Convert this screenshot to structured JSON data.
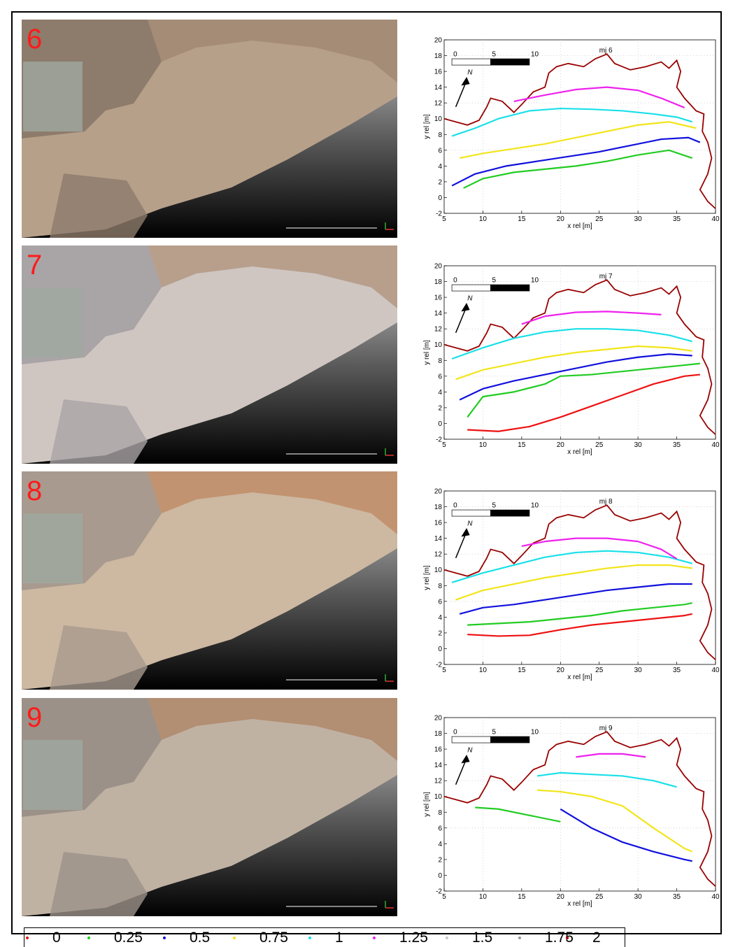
{
  "panels": [
    {
      "number": "6",
      "plot_title": "mj 6"
    },
    {
      "number": "7",
      "plot_title": "mj 7"
    },
    {
      "number": "8",
      "plot_title": "mj 8"
    },
    {
      "number": "9",
      "plot_title": "mj 9"
    }
  ],
  "axes": {
    "xlabel": "x rel [m]",
    "ylabel": "y rel [m]",
    "x_ticks": [
      "5",
      "10",
      "15",
      "20",
      "25",
      "30",
      "35",
      "40"
    ],
    "y_ticks": [
      "-2",
      "0",
      "2",
      "4",
      "6",
      "8",
      "10",
      "12",
      "14",
      "16",
      "18",
      "20"
    ],
    "scale_bar_labels": [
      "0",
      "5",
      "10"
    ],
    "north_label": "N"
  },
  "chart_data": {
    "type": "line",
    "xlim": [
      5,
      40
    ],
    "ylim": [
      -2,
      20
    ],
    "xlabel": "x rel [m]",
    "ylabel": "y rel [m]",
    "grid": true,
    "legend_placement": "bottom",
    "legend": [
      {
        "label": "0",
        "color": "#ee1111"
      },
      {
        "label": "0.25",
        "color": "#22cc22"
      },
      {
        "label": "0.5",
        "color": "#1111dd"
      },
      {
        "label": "0.75",
        "color": "#f2e51a"
      },
      {
        "label": "1",
        "color": "#19e0e8"
      },
      {
        "label": "1.25",
        "color": "#ee22ee"
      },
      {
        "label": "1.5",
        "color": "#c8c8c8"
      },
      {
        "label": "1.75",
        "color": "#999999"
      },
      {
        "label": "2",
        "color": "#990000"
      }
    ],
    "panels": [
      {
        "title": "mj 6",
        "series": [
          {
            "name": "0.25",
            "color": "#22cc22",
            "x": [
              7.5,
              10,
              14,
              18,
              22,
              26,
              30,
              34,
              37
            ],
            "y": [
              1.2,
              2.4,
              3.2,
              3.6,
              4.0,
              4.6,
              5.4,
              6.0,
              5.0
            ]
          },
          {
            "name": "0.5",
            "color": "#1111dd",
            "x": [
              6,
              9,
              13,
              17,
              21,
              25,
              29,
              33,
              36.5,
              38
            ],
            "y": [
              1.5,
              3.0,
              4.0,
              4.6,
              5.2,
              5.8,
              6.6,
              7.4,
              7.6,
              7.0
            ]
          },
          {
            "name": "0.75",
            "color": "#f2e51a",
            "x": [
              7,
              10,
              14,
              18,
              22,
              26,
              30,
              34,
              37.5
            ],
            "y": [
              5.0,
              5.6,
              6.2,
              6.8,
              7.6,
              8.4,
              9.2,
              9.6,
              8.8
            ]
          },
          {
            "name": "1",
            "color": "#19e0e8",
            "x": [
              6,
              9,
              12,
              16,
              20,
              24,
              28,
              32,
              35,
              37
            ],
            "y": [
              7.8,
              8.8,
              10.0,
              11.0,
              11.3,
              11.2,
              11.0,
              10.6,
              10.2,
              9.6
            ]
          },
          {
            "name": "1.25",
            "color": "#ee22ee",
            "x": [
              14,
              18,
              22,
              26,
              30,
              33,
              36
            ],
            "y": [
              12.2,
              13.0,
              13.7,
              14.0,
              13.6,
              12.6,
              11.4
            ]
          }
        ]
      },
      {
        "title": "mj 7",
        "series": [
          {
            "name": "0",
            "color": "#ee1111",
            "x": [
              8,
              12,
              16,
              20,
              24,
              28,
              32,
              36,
              38
            ],
            "y": [
              -0.8,
              -1.0,
              -0.4,
              0.8,
              2.2,
              3.6,
              5.0,
              6.0,
              6.2
            ]
          },
          {
            "name": "0.25",
            "color": "#22cc22",
            "x": [
              8,
              10,
              14,
              18,
              20,
              24,
              28,
              32,
              36,
              38
            ],
            "y": [
              0.8,
              3.4,
              4.0,
              5.0,
              6.0,
              6.2,
              6.6,
              7.0,
              7.4,
              7.6
            ]
          },
          {
            "name": "0.5",
            "color": "#1111dd",
            "x": [
              7,
              10,
              14,
              18,
              22,
              26,
              30,
              34,
              37
            ],
            "y": [
              3.0,
              4.4,
              5.4,
              6.2,
              7.0,
              7.8,
              8.4,
              8.8,
              8.6
            ]
          },
          {
            "name": "0.75",
            "color": "#f2e51a",
            "x": [
              6.5,
              10,
              14,
              18,
              22,
              26,
              30,
              34,
              37
            ],
            "y": [
              5.6,
              6.8,
              7.6,
              8.4,
              9.0,
              9.4,
              9.8,
              9.6,
              9.2
            ]
          },
          {
            "name": "1",
            "color": "#19e0e8",
            "x": [
              6,
              10,
              14,
              18,
              22,
              26,
              30,
              34,
              37
            ],
            "y": [
              8.2,
              9.6,
              10.8,
              11.6,
              12.0,
              12.0,
              11.8,
              11.2,
              10.4
            ]
          },
          {
            "name": "1.25",
            "color": "#ee22ee",
            "x": [
              15,
              18,
              22,
              26,
              30,
              33
            ],
            "y": [
              12.6,
              13.6,
              14.1,
              14.2,
              14.0,
              13.8
            ]
          }
        ]
      },
      {
        "title": "mj 8",
        "series": [
          {
            "name": "0",
            "color": "#ee1111",
            "x": [
              8,
              12,
              16,
              20,
              24,
              28,
              32,
              36,
              37
            ],
            "y": [
              1.8,
              1.6,
              1.7,
              2.4,
              3.0,
              3.4,
              3.8,
              4.2,
              4.4
            ]
          },
          {
            "name": "0.25",
            "color": "#22cc22",
            "x": [
              8,
              12,
              16,
              20,
              24,
              28,
              32,
              36,
              37
            ],
            "y": [
              3.0,
              3.2,
              3.4,
              3.8,
              4.2,
              4.8,
              5.2,
              5.6,
              5.8
            ]
          },
          {
            "name": "0.5",
            "color": "#1111dd",
            "x": [
              7,
              10,
              14,
              18,
              22,
              26,
              30,
              34,
              37
            ],
            "y": [
              4.4,
              5.2,
              5.6,
              6.2,
              6.8,
              7.4,
              7.8,
              8.2,
              8.2
            ]
          },
          {
            "name": "0.75",
            "color": "#f2e51a",
            "x": [
              6.5,
              10,
              14,
              18,
              22,
              26,
              30,
              34,
              37
            ],
            "y": [
              6.2,
              7.4,
              8.2,
              9.0,
              9.6,
              10.2,
              10.6,
              10.6,
              10.2
            ]
          },
          {
            "name": "1",
            "color": "#19e0e8",
            "x": [
              6,
              10,
              14,
              18,
              22,
              26,
              30,
              34,
              37
            ],
            "y": [
              8.4,
              9.6,
              10.6,
              11.6,
              12.2,
              12.4,
              12.2,
              11.6,
              10.8
            ]
          },
          {
            "name": "1.25",
            "color": "#ee22ee",
            "x": [
              15,
              18,
              22,
              26,
              30,
              33,
              35
            ],
            "y": [
              13.0,
              13.6,
              14.0,
              14.0,
              13.6,
              12.6,
              11.4
            ]
          }
        ]
      },
      {
        "title": "mj 9",
        "series": [
          {
            "name": "0.25",
            "color": "#22cc22",
            "x": [
              9,
              12,
              16,
              20
            ],
            "y": [
              8.6,
              8.4,
              7.6,
              6.8
            ]
          },
          {
            "name": "0.5",
            "color": "#1111dd",
            "x": [
              20,
              24,
              28,
              32,
              36,
              37
            ],
            "y": [
              8.4,
              6.0,
              4.2,
              3.0,
              2.0,
              1.8
            ]
          },
          {
            "name": "0.75",
            "color": "#f2e51a",
            "x": [
              17,
              20,
              24,
              28,
              32,
              36,
              37
            ],
            "y": [
              10.8,
              10.6,
              10.0,
              8.8,
              6.0,
              3.4,
              3.0
            ]
          },
          {
            "name": "1",
            "color": "#19e0e8",
            "x": [
              17,
              20,
              24,
              28,
              32,
              35
            ],
            "y": [
              12.6,
              13.0,
              12.8,
              12.6,
              12.0,
              11.2
            ]
          },
          {
            "name": "1.25",
            "color": "#ee22ee",
            "x": [
              22,
              25,
              28,
              31
            ],
            "y": [
              15.0,
              15.4,
              15.4,
              15.0
            ]
          }
        ]
      }
    ]
  }
}
